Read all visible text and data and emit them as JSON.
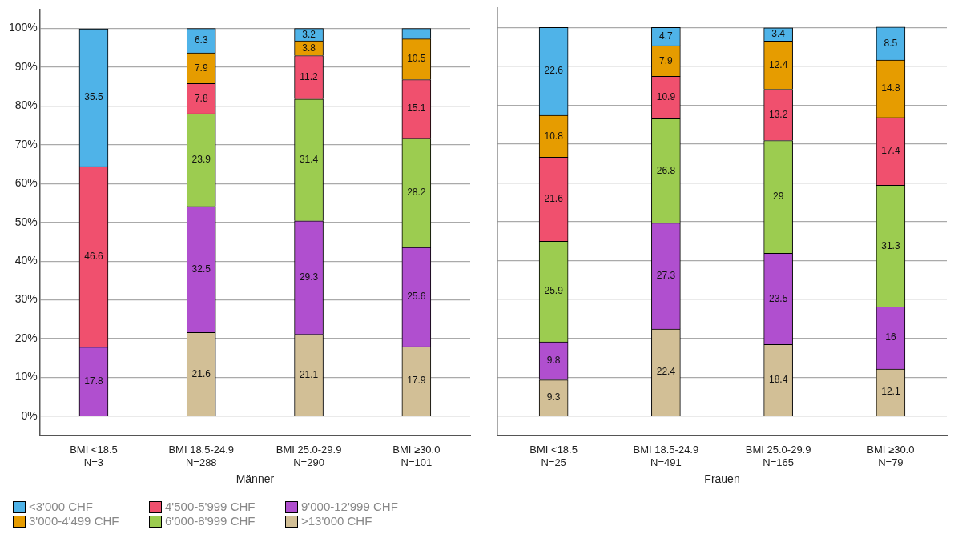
{
  "chart_data": [
    {
      "type": "bar",
      "stacked": true,
      "xlabel": "Männer",
      "categories": [
        "BMI <18.5\nN=3",
        "BMI 18.5-24.9\nN=288",
        "BMI 25.0-29.9\nN=290",
        "BMI ≥30.0\nN=101"
      ],
      "series": [
        {
          "name": ">13'000 CHF",
          "color": "#d2bf96",
          "values": [
            0,
            21.6,
            21.1,
            17.9
          ],
          "value_labels": [
            null,
            "21.6",
            "21.1",
            "17.9"
          ]
        },
        {
          "name": "9'000-12'999 CHF",
          "color": "#b04fcf",
          "values": [
            17.8,
            32.5,
            29.3,
            25.6
          ],
          "value_labels": [
            "17.8",
            "32.5",
            "29.3",
            "25.6"
          ]
        },
        {
          "name": "6'000-8'999 CHF",
          "color": "#9ccc50",
          "values": [
            0,
            23.9,
            31.4,
            28.2
          ],
          "value_labels": [
            null,
            "23.9",
            "31.4",
            "28.2"
          ]
        },
        {
          "name": "4'500-5'999 CHF",
          "color": "#f0506e",
          "values": [
            46.6,
            7.8,
            11.2,
            15.1
          ],
          "value_labels": [
            "46.6",
            "7.8",
            "11.2",
            "15.1"
          ]
        },
        {
          "name": "3'000-4'499 CHF",
          "color": "#e69c00",
          "values": [
            0,
            7.9,
            3.8,
            10.5
          ],
          "value_labels": [
            null,
            "7.9",
            "3.8",
            "10.5"
          ]
        },
        {
          "name": "<3'000 CHF",
          "color": "#4fb3e8",
          "values": [
            35.5,
            6.3,
            3.2,
            2.7
          ],
          "value_labels": [
            "35.5",
            "6.3",
            "3.2",
            null
          ]
        }
      ],
      "ylim": [
        -5,
        105
      ],
      "yticks": [
        {
          "value": 0,
          "label": "0%"
        },
        {
          "value": 10,
          "label": "10%"
        },
        {
          "value": 20,
          "label": "20%"
        },
        {
          "value": 30,
          "label": "30%"
        },
        {
          "value": 40,
          "label": "40%"
        },
        {
          "value": 50,
          "label": "50%"
        },
        {
          "value": 60,
          "label": "60%"
        },
        {
          "value": 70,
          "label": "70%"
        },
        {
          "value": 80,
          "label": "80%"
        },
        {
          "value": 90,
          "label": "90%"
        },
        {
          "value": 100,
          "label": "100%"
        }
      ],
      "grid": "y",
      "legend": "bottom"
    },
    {
      "type": "bar",
      "stacked": true,
      "xlabel": "Frauen",
      "categories": [
        "BMI <18.5\nN=25",
        "BMI 18.5-24.9\nN=491",
        "BMI 25.0-29.9\nN=165",
        "BMI ≥30.0\nN=79"
      ],
      "series": [
        {
          "name": ">13'000 CHF",
          "color": "#d2bf96",
          "values": [
            9.3,
            22.4,
            18.4,
            12.1
          ],
          "value_labels": [
            "9.3",
            "22.4",
            "18.4",
            "12.1"
          ]
        },
        {
          "name": "9'000-12'999 CHF",
          "color": "#b04fcf",
          "values": [
            9.8,
            27.3,
            23.5,
            16
          ],
          "value_labels": [
            "9.8",
            "27.3",
            "23.5",
            "16"
          ]
        },
        {
          "name": "6'000-8'999 CHF",
          "color": "#9ccc50",
          "values": [
            25.9,
            26.8,
            29,
            31.3
          ],
          "value_labels": [
            "25.9",
            "26.8",
            "29",
            "31.3"
          ]
        },
        {
          "name": "4'500-5'999 CHF",
          "color": "#f0506e",
          "values": [
            21.6,
            10.9,
            13.2,
            17.4
          ],
          "value_labels": [
            "21.6",
            "10.9",
            "13.2",
            "17.4"
          ]
        },
        {
          "name": "3'000-4'499 CHF",
          "color": "#e69c00",
          "values": [
            10.8,
            7.9,
            12.4,
            14.8
          ],
          "value_labels": [
            "10.8",
            "7.9",
            "12.4",
            "14.8"
          ]
        },
        {
          "name": "<3'000 CHF",
          "color": "#4fb3e8",
          "values": [
            22.6,
            4.7,
            3.4,
            8.5
          ],
          "value_labels": [
            "22.6",
            "4.7",
            "3.4",
            "8.5"
          ]
        }
      ],
      "ylim": [
        -5,
        105
      ],
      "yticks": [
        0,
        10,
        20,
        30,
        40,
        50,
        60,
        70,
        80,
        90,
        100
      ],
      "grid": "y",
      "tick_labels": "x"
    }
  ]
}
